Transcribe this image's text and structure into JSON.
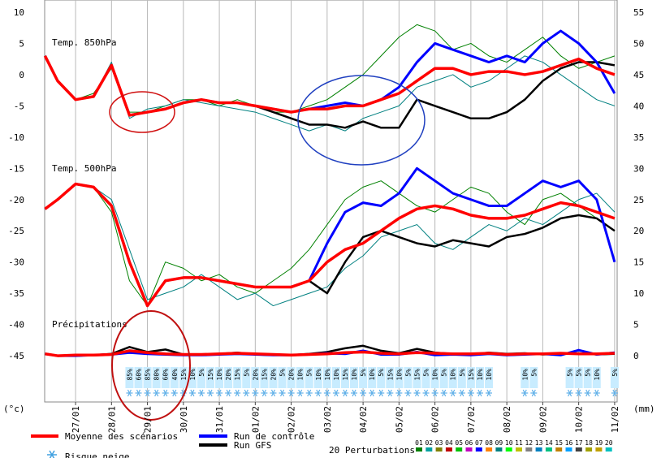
{
  "chart_data": {
    "type": "line",
    "xlim": [
      -0.86,
      15.07
    ],
    "xticks": [
      {
        "value": 0,
        "label": "27/01"
      },
      {
        "value": 1,
        "label": "28/01"
      },
      {
        "value": 2,
        "label": "29/01"
      },
      {
        "value": 3,
        "label": "30/01"
      },
      {
        "value": 4,
        "label": "31/01"
      },
      {
        "value": 5,
        "label": "01/02"
      },
      {
        "value": 6,
        "label": "02/02"
      },
      {
        "value": 7,
        "label": "03/02"
      },
      {
        "value": 8,
        "label": "04/02"
      },
      {
        "value": 9,
        "label": "05/02"
      },
      {
        "value": 10,
        "label": "06/02"
      },
      {
        "value": 11,
        "label": "07/02"
      },
      {
        "value": 12,
        "label": "08/02"
      },
      {
        "value": 13,
        "label": "09/02"
      },
      {
        "value": 14,
        "label": "10/02"
      },
      {
        "value": 15,
        "label": "11/02"
      }
    ],
    "grid": true,
    "ylim": [
      -52.4,
      11.95
    ],
    "yticks": [
      -45,
      -40,
      -35,
      -30,
      -25,
      -20,
      -15,
      -10,
      -5,
      0,
      5,
      10
    ],
    "y_unit": "(°c)",
    "y2lim": [
      -7.4,
      56.95
    ],
    "y2ticks": [
      0,
      5,
      10,
      15,
      20,
      25,
      30,
      35,
      40,
      45,
      50,
      55
    ],
    "y2_unit": "(mm)",
    "x": [
      -0.85,
      -0.5,
      0,
      0.5,
      1,
      1.5,
      2,
      2.5,
      3,
      3.5,
      4,
      4.5,
      5,
      5.5,
      6,
      6.5,
      7,
      7.5,
      8,
      8.5,
      9,
      9.5,
      10,
      10.5,
      11,
      11.5,
      12,
      12.5,
      13,
      13.5,
      14,
      14.5,
      15
    ],
    "legend": [
      {
        "name": "Moyenne des scénarios",
        "color": "#ff0000"
      },
      {
        "name": "Run de contrôle",
        "color": "#0000ff"
      },
      {
        "name": "Run GFS",
        "color": "#000000"
      }
    ],
    "perturbations": {
      "title": "20 Perturbations",
      "items": [
        {
          "name": "01",
          "color": "#008000"
        },
        {
          "name": "02",
          "color": "#00a0a0"
        },
        {
          "name": "03",
          "color": "#808000"
        },
        {
          "name": "04",
          "color": "#c00000"
        },
        {
          "name": "05",
          "color": "#00c000"
        },
        {
          "name": "06",
          "color": "#c000c0"
        },
        {
          "name": "07",
          "color": "#0000ff"
        },
        {
          "name": "08",
          "color": "#ff8000"
        },
        {
          "name": "09",
          "color": "#008080"
        },
        {
          "name": "10",
          "color": "#00ff00"
        },
        {
          "name": "11",
          "color": "#c0c000"
        },
        {
          "name": "12",
          "color": "#808080"
        },
        {
          "name": "13",
          "color": "#0080c0"
        },
        {
          "name": "14",
          "color": "#00c080"
        },
        {
          "name": "15",
          "color": "#c08000"
        },
        {
          "name": "16",
          "color": "#00a0ff"
        },
        {
          "name": "17",
          "color": "#404040"
        },
        {
          "name": "18",
          "color": "#a0a000"
        },
        {
          "name": "19",
          "color": "#c0a000"
        },
        {
          "name": "20",
          "color": "#00c0c0"
        }
      ]
    },
    "panels": [
      {
        "label": "Temp. 850hPa",
        "axis": "y",
        "members": [
          {
            "member": 0,
            "values": [
              3,
              -1,
              -4,
              -3,
              1,
              -6,
              -6,
              -5,
              -4,
              -4,
              -5,
              -4,
              -5,
              -6,
              -6,
              -5,
              -4,
              -2,
              0,
              3,
              6,
              8,
              7,
              4,
              5,
              3,
              2,
              4,
              6,
              3,
              1,
              2,
              3
            ]
          },
          {
            "member": 8,
            "values": [
              3,
              -1,
              -4,
              -3.5,
              2,
              -7,
              -5.5,
              -5,
              -4,
              -4.5,
              -5,
              -5.5,
              -6,
              -7,
              -8,
              -9,
              -8,
              -9,
              -7,
              -6,
              -5,
              -2,
              -1,
              0,
              -2,
              -1,
              1,
              3,
              2,
              0,
              -2,
              -4,
              -5
            ]
          }
        ],
        "series": [
          {
            "values": [
              3,
              -1,
              -4,
              -3.5,
              1.5,
              -6.5,
              -6,
              -5.5,
              -4.5,
              -4,
              -4.5,
              -4.5,
              -5,
              -5.5,
              -6,
              -5.5,
              -5.5,
              -5,
              -5,
              -4,
              -3,
              -1,
              1,
              1,
              0,
              0.5,
              0.5,
              0,
              0.5,
              1.5,
              2.5,
              1,
              0
            ]
          },
          {
            "values": [
              3,
              -1,
              -4,
              -3.5,
              1.5,
              -6.5,
              -6,
              -5.5,
              -4.5,
              -4,
              -4.5,
              -4.5,
              -5,
              -5.5,
              -6,
              -5.5,
              -5,
              -4.5,
              -5,
              -4,
              -2,
              2,
              5,
              4,
              3,
              2,
              3,
              2,
              5,
              7,
              5,
              2,
              -3
            ]
          },
          {
            "values": [
              3,
              -1,
              -4,
              -3.5,
              1.5,
              -6.5,
              -6,
              -5.5,
              -4.5,
              -4,
              -4.5,
              -4.5,
              -5,
              -6,
              -7,
              -8,
              -8,
              -8.5,
              -7.5,
              -8.5,
              -8.5,
              -4,
              -5,
              -6,
              -7,
              -7,
              -6,
              -4,
              -1,
              1,
              2,
              2,
              1.5
            ]
          }
        ]
      },
      {
        "label": "Temp. 500hPa",
        "axis": "y",
        "members": [
          {
            "member": 0,
            "values": [
              -21.5,
              -20,
              -17.5,
              -18,
              -22,
              -33,
              -37,
              -30,
              -31,
              -33,
              -32,
              -34,
              -35,
              -33,
              -31,
              -28,
              -24,
              -20,
              -18,
              -17,
              -19,
              -21,
              -22,
              -20,
              -18,
              -19,
              -22,
              -24,
              -20,
              -19,
              -21,
              -23,
              -25
            ]
          },
          {
            "member": 8,
            "values": [
              -21.5,
              -20,
              -17.5,
              -18,
              -20,
              -28,
              -36,
              -35,
              -34,
              -32,
              -34,
              -36,
              -35,
              -37,
              -36,
              -35,
              -34,
              -31,
              -29,
              -26,
              -25,
              -24,
              -27,
              -28,
              -26,
              -24,
              -25,
              -23,
              -24,
              -22,
              -20,
              -19,
              -22
            ]
          }
        ],
        "series": [
          {
            "values": [
              -21.5,
              -20,
              -17.5,
              -18,
              -21,
              -30,
              -37,
              -33,
              -32.5,
              -32.5,
              -33,
              -33.5,
              -34,
              -34,
              -34,
              -33,
              -30,
              -28,
              -27,
              -25,
              -23,
              -21.5,
              -21,
              -21.5,
              -22.5,
              -23,
              -23,
              -22.5,
              -21.5,
              -20.5,
              -21,
              -22,
              -23
            ]
          },
          {
            "values": [
              -21.5,
              -20,
              -17.5,
              -18,
              -21,
              -30,
              -37,
              -33,
              -32.5,
              -32.5,
              -33,
              -33.5,
              -34,
              -34,
              -34,
              -33,
              -27,
              -22,
              -20.5,
              -21,
              -19,
              -15,
              -17,
              -19,
              -20,
              -21,
              -21,
              -19,
              -17,
              -18,
              -17,
              -20,
              -30
            ]
          },
          {
            "values": [
              -21.5,
              -20,
              -17.5,
              -18,
              -21,
              -30,
              -37,
              -33,
              -32.5,
              -32.5,
              -33,
              -33.5,
              -34,
              -34,
              -34,
              -33,
              -35,
              -30,
              -26,
              -25,
              -26,
              -27,
              -27.5,
              -26.5,
              -27,
              -27.5,
              -26,
              -25.5,
              -24.5,
              -23,
              -22.5,
              -23,
              -25
            ]
          }
        ]
      },
      {
        "label": "Précipitations",
        "axis": "y2",
        "members": [],
        "series": [
          {
            "values": [
              0.3,
              0,
              0.1,
              0.1,
              0.2,
              0.8,
              0.5,
              0.3,
              0.2,
              0.2,
              0.3,
              0.4,
              0.3,
              0.2,
              0.1,
              0.2,
              0.3,
              0.5,
              0.6,
              0.4,
              0.3,
              0.5,
              0.4,
              0.3,
              0.3,
              0.4,
              0.2,
              0.3,
              0.3,
              0.4,
              0.3,
              0.3,
              0.4
            ]
          },
          {
            "values": [
              0.3,
              0,
              0,
              0.1,
              0.2,
              0.5,
              0.3,
              0.2,
              0.1,
              0.1,
              0.2,
              0.3,
              0.2,
              0.1,
              0.1,
              0.2,
              0.4,
              0.3,
              0.8,
              0.2,
              0.2,
              0.6,
              0.1,
              0.2,
              0.1,
              0.3,
              0.1,
              0.2,
              0.3,
              0.1,
              0.9,
              0.2,
              0.5
            ]
          },
          {
            "values": [
              0.3,
              0,
              0,
              0.1,
              0.3,
              1.4,
              0.6,
              1.0,
              0.2,
              0.1,
              0.3,
              0.5,
              0.2,
              0.1,
              0.1,
              0.3,
              0.6,
              1.2,
              1.6,
              0.8,
              0.4,
              1.1,
              0.5,
              0.3,
              0.2,
              0.5,
              0.3,
              0.4,
              0.2,
              0.3,
              0.4,
              0.2,
              0.3
            ]
          }
        ]
      }
    ],
    "snow_risk": {
      "title": "Risque neige",
      "x": [
        1.5,
        1.75,
        2,
        2.25,
        2.5,
        2.75,
        3,
        3.25,
        3.5,
        3.75,
        4,
        4.25,
        4.5,
        4.75,
        5,
        5.25,
        5.5,
        5.75,
        6,
        6.25,
        6.5,
        6.75,
        7,
        7.25,
        7.5,
        7.75,
        8,
        8.25,
        8.5,
        8.75,
        9,
        9.25,
        9.5,
        9.75,
        10,
        10.25,
        10.5,
        10.75,
        11,
        11.25,
        11.5,
        12.5,
        12.75,
        13.75,
        14,
        14.25,
        14.5,
        15
      ],
      "values": [
        85,
        60,
        85,
        80,
        60,
        40,
        15,
        10,
        5,
        15,
        10,
        20,
        15,
        5,
        20,
        15,
        20,
        5,
        20,
        10,
        5,
        10,
        10,
        10,
        15,
        10,
        5,
        10,
        5,
        15,
        10,
        5,
        15,
        5,
        10,
        5,
        10,
        5,
        15,
        10,
        10,
        10,
        5,
        5,
        5,
        5,
        10,
        5
      ],
      "value_labels": [
        "85%",
        "60%",
        "85%",
        "80%",
        "60%",
        "40%",
        "15%",
        "10%",
        "5%",
        "15%",
        "10%",
        "20%",
        "15%",
        "5%",
        "20%",
        "15%",
        "20%",
        "5%",
        "20%",
        "10%",
        "5%",
        "10%",
        "10%",
        "10%",
        "15%",
        "10%",
        "5%",
        "10%",
        "5%",
        "15%",
        "10%",
        "5%",
        "15%",
        "5%",
        "10%",
        "5%",
        "10%",
        "5%",
        "15%",
        "10%",
        "10%",
        "10%",
        "5%",
        "5%",
        "5%",
        "5%",
        "10%",
        "5%"
      ]
    }
  }
}
